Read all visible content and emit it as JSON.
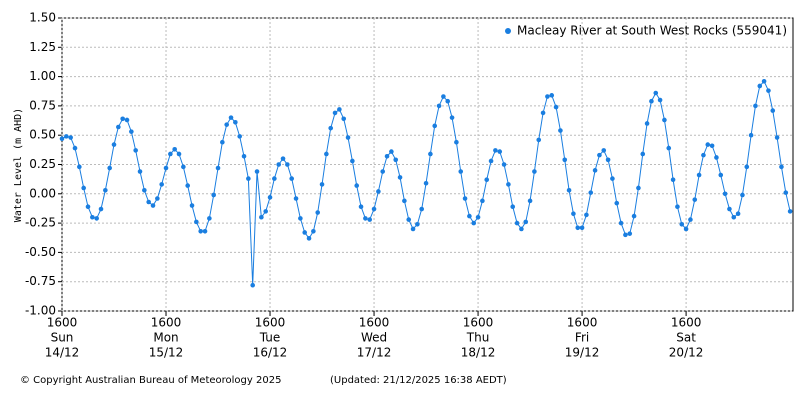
{
  "chart_data": {
    "type": "line",
    "y_label": "Water Level (m AHD)",
    "copyright": "© Copyright Australian Bureau of Meteorology 2025",
    "updated": "(Updated: 21/12/2025 16:38 AEDT)",
    "legend": "upper right",
    "grid": true,
    "xlim": [
      "14/12 1600",
      "21/12 1640"
    ],
    "ylim": [
      -1.0,
      1.5
    ],
    "yticks": [
      {
        "value": -1.0,
        "label": "-1.00"
      },
      {
        "value": -0.75,
        "label": "-0.75"
      },
      {
        "value": -0.5,
        "label": "-0.50"
      },
      {
        "value": -0.25,
        "label": "-0.25"
      },
      {
        "value": 0,
        "label": "0.00"
      },
      {
        "value": 0.25,
        "label": "0.25"
      },
      {
        "value": 0.5,
        "label": "0.50"
      },
      {
        "value": 0.75,
        "label": "0.75"
      },
      {
        "value": 1.0,
        "label": "1.00"
      },
      {
        "value": 1.25,
        "label": "1.25"
      },
      {
        "value": 1.5,
        "label": "1.50"
      }
    ],
    "xticks": [
      {
        "value": "14/12 1600",
        "label": [
          "1600",
          "Sun",
          "14/12"
        ]
      },
      {
        "value": "15/12 1600",
        "label": [
          "1600",
          "Mon",
          "15/12"
        ]
      },
      {
        "value": "16/12 1600",
        "label": [
          "1600",
          "Tue",
          "16/12"
        ]
      },
      {
        "value": "17/12 1600",
        "label": [
          "1600",
          "Wed",
          "17/12"
        ]
      },
      {
        "value": "18/12 1600",
        "label": [
          "1600",
          "Thu",
          "18/12"
        ]
      },
      {
        "value": "19/12 1600",
        "label": [
          "1600",
          "Fri",
          "19/12"
        ]
      },
      {
        "value": "20/12 1600",
        "label": [
          "1600",
          "Sat",
          "20/12"
        ]
      }
    ],
    "x": [
      "14/12 1600",
      "14/12 1700",
      "14/12 1800",
      "14/12 1900",
      "14/12 2000",
      "14/12 2100",
      "14/12 2200",
      "14/12 2300",
      "15/12 0000",
      "15/12 0100",
      "15/12 0200",
      "15/12 0300",
      "15/12 0400",
      "15/12 0500",
      "15/12 0600",
      "15/12 0700",
      "15/12 0800",
      "15/12 0900",
      "15/12 1000",
      "15/12 1100",
      "15/12 1200",
      "15/12 1300",
      "15/12 1400",
      "15/12 1500",
      "15/12 1600",
      "15/12 1700",
      "15/12 1800",
      "15/12 1900",
      "15/12 2000",
      "15/12 2100",
      "15/12 2200",
      "15/12 2300",
      "16/12 0000",
      "16/12 0100",
      "16/12 0200",
      "16/12 0300",
      "16/12 0400",
      "16/12 0500",
      "16/12 0600",
      "16/12 0700",
      "16/12 0800",
      "16/12 0900",
      "16/12 1000",
      "16/12 1100",
      "16/12 1200",
      "16/12 1300",
      "16/12 1400",
      "16/12 1500",
      "16/12 1600",
      "16/12 1700",
      "16/12 1800",
      "16/12 1900",
      "16/12 2000",
      "16/12 2100",
      "16/12 2200",
      "16/12 2300",
      "17/12 0000",
      "17/12 0100",
      "17/12 0200",
      "17/12 0300",
      "17/12 0400",
      "17/12 0500",
      "17/12 0600",
      "17/12 0700",
      "17/12 0800",
      "17/12 0900",
      "17/12 1000",
      "17/12 1100",
      "17/12 1200",
      "17/12 1300",
      "17/12 1400",
      "17/12 1500",
      "17/12 1600",
      "17/12 1700",
      "17/12 1800",
      "17/12 1900",
      "17/12 2000",
      "17/12 2100",
      "17/12 2200",
      "17/12 2300",
      "18/12 0000",
      "18/12 0100",
      "18/12 0200",
      "18/12 0300",
      "18/12 0400",
      "18/12 0500",
      "18/12 0600",
      "18/12 0700",
      "18/12 0800",
      "18/12 0900",
      "18/12 1000",
      "18/12 1100",
      "18/12 1200",
      "18/12 1300",
      "18/12 1400",
      "18/12 1500",
      "18/12 1600",
      "18/12 1700",
      "18/12 1800",
      "18/12 1900",
      "18/12 2000",
      "18/12 2100",
      "18/12 2200",
      "18/12 2300",
      "19/12 0000",
      "19/12 0100",
      "19/12 0200",
      "19/12 0300",
      "19/12 0400",
      "19/12 0500",
      "19/12 0600",
      "19/12 0700",
      "19/12 0800",
      "19/12 0900",
      "19/12 1000",
      "19/12 1100",
      "19/12 1200",
      "19/12 1300",
      "19/12 1400",
      "19/12 1500",
      "19/12 1600",
      "19/12 1700",
      "19/12 1800",
      "19/12 1900",
      "19/12 2000",
      "19/12 2100",
      "19/12 2200",
      "19/12 2300",
      "20/12 0000",
      "20/12 0100",
      "20/12 0200",
      "20/12 0300",
      "20/12 0400",
      "20/12 0500",
      "20/12 0600",
      "20/12 0700",
      "20/12 0800",
      "20/12 0900",
      "20/12 1000",
      "20/12 1100",
      "20/12 1200",
      "20/12 1300",
      "20/12 1400",
      "20/12 1500",
      "20/12 1600",
      "20/12 1700",
      "20/12 1800",
      "20/12 1900",
      "20/12 2000",
      "20/12 2100",
      "20/12 2200",
      "20/12 2300",
      "21/12 0000",
      "21/12 0100",
      "21/12 0200",
      "21/12 0300",
      "21/12 0400",
      "21/12 0500",
      "21/12 0600",
      "21/12 0700",
      "21/12 0800",
      "21/12 0900",
      "21/12 1000",
      "21/12 1100",
      "21/12 1200",
      "21/12 1300",
      "21/12 1400",
      "21/12 1500",
      "21/12 1600"
    ],
    "series": [
      {
        "name": "Macleay River at South West Rocks (559041)",
        "color": "#1a7ee0",
        "values": [
          0.47,
          0.49,
          0.48,
          0.39,
          0.23,
          0.05,
          -0.11,
          -0.2,
          -0.21,
          -0.13,
          0.03,
          0.22,
          0.42,
          0.57,
          0.64,
          0.63,
          0.53,
          0.37,
          0.19,
          0.03,
          -0.07,
          -0.1,
          -0.04,
          0.08,
          0.22,
          0.34,
          0.38,
          0.34,
          0.23,
          0.07,
          -0.1,
          -0.24,
          -0.32,
          -0.32,
          -0.21,
          -0.01,
          0.22,
          0.44,
          0.59,
          0.65,
          0.61,
          0.49,
          0.32,
          0.13,
          -0.78,
          0.19,
          -0.2,
          -0.15,
          -0.03,
          0.13,
          0.25,
          0.3,
          0.25,
          0.13,
          -0.04,
          -0.21,
          -0.33,
          -0.38,
          -0.32,
          -0.16,
          0.08,
          0.34,
          0.56,
          0.69,
          0.72,
          0.64,
          0.48,
          0.28,
          0.07,
          -0.11,
          -0.21,
          -0.22,
          -0.13,
          0.02,
          0.19,
          0.32,
          0.36,
          0.29,
          0.14,
          -0.06,
          -0.22,
          -0.3,
          -0.26,
          -0.13,
          0.09,
          0.34,
          0.58,
          0.75,
          0.83,
          0.79,
          0.65,
          0.44,
          0.19,
          -0.04,
          -0.19,
          -0.25,
          -0.2,
          -0.06,
          0.12,
          0.28,
          0.37,
          0.36,
          0.25,
          0.08,
          -0.11,
          -0.25,
          -0.3,
          -0.24,
          -0.06,
          0.19,
          0.46,
          0.69,
          0.83,
          0.84,
          0.74,
          0.54,
          0.29,
          0.03,
          -0.17,
          -0.29,
          -0.29,
          -0.18,
          0.01,
          0.2,
          0.33,
          0.37,
          0.29,
          0.13,
          -0.08,
          -0.25,
          -0.35,
          -0.34,
          -0.19,
          0.05,
          0.34,
          0.6,
          0.79,
          0.86,
          0.8,
          0.63,
          0.39,
          0.12,
          -0.11,
          -0.26,
          -0.3,
          -0.22,
          -0.05,
          0.16,
          0.33,
          0.42,
          0.41,
          0.31,
          0.16,
          0.0,
          -0.13,
          -0.2,
          -0.17,
          -0.01,
          0.23,
          0.5,
          0.75,
          0.92,
          0.96,
          0.88,
          0.71,
          0.48,
          0.23,
          0.01,
          -0.15
        ]
      }
    ]
  }
}
